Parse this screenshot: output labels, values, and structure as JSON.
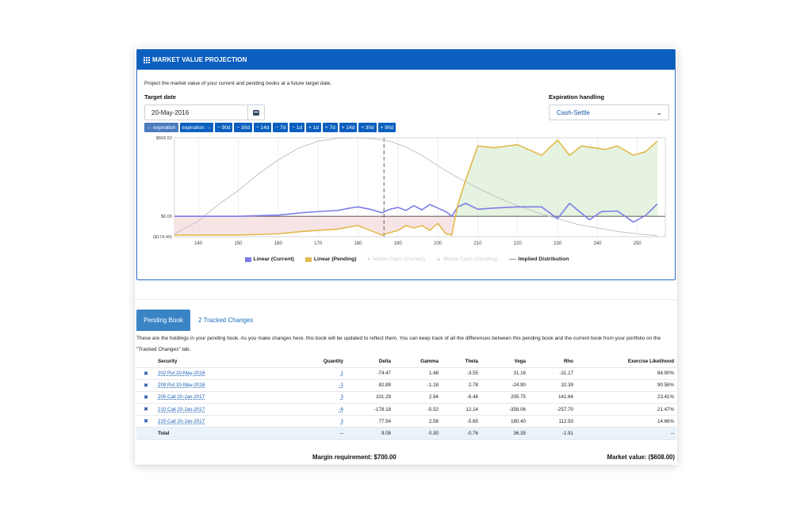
{
  "panel": {
    "title": "MARKET VALUE PROJECTION",
    "intro": "Project the market value of your current and pending books at a future target date.",
    "target_date_label": "Target date",
    "target_date_value": "20-May-2016",
    "expiration_label": "Expiration handling",
    "expiration_value": "Cash-Settle",
    "shift_buttons": [
      "← expiration",
      "expiration →",
      "− 90d",
      "− 30d",
      "− 14d",
      "− 7d",
      "− 1d",
      "+ 1d",
      "+ 7d",
      "+ 14d",
      "+ 30d",
      "+ 90d"
    ]
  },
  "chart_data": {
    "type": "line",
    "xlim": [
      134,
      257
    ],
    "ylim": [
      -174.4,
      669.52
    ],
    "y_tick_labels": [
      "$669.52",
      "$0.00",
      "($174.40)"
    ],
    "y_ticks": [
      669.52,
      0,
      -174.4
    ],
    "x_ticks": [
      140,
      150,
      160,
      170,
      180,
      190,
      200,
      210,
      220,
      230,
      240,
      250
    ],
    "marker_x": 186.5,
    "colors": {
      "current": "#7c7ce6",
      "pending": "#e3b94a",
      "implied": "#c4c4c8",
      "pos_fill": "#e5f3e0",
      "neg_fill": "#f7e4e4"
    },
    "series": [
      {
        "name": "Linear (Current)",
        "x": [
          134,
          150,
          160,
          166,
          170,
          175,
          178,
          180,
          183,
          186,
          188,
          190,
          192,
          194,
          196,
          198,
          200,
          202,
          203.5,
          205,
          207,
          210,
          214,
          220,
          226,
          230,
          233,
          238,
          241,
          245,
          249,
          252,
          255
        ],
        "values": [
          0,
          0,
          10,
          30,
          40,
          50,
          70,
          80,
          60,
          30,
          60,
          75,
          50,
          90,
          55,
          100,
          70,
          40,
          0,
          80,
          110,
          60,
          70,
          80,
          80,
          -20,
          110,
          -30,
          40,
          45,
          -50,
          5,
          105
        ]
      },
      {
        "name": "Linear (Pending)",
        "x": [
          134,
          150,
          160,
          166,
          170,
          175,
          178,
          180,
          183,
          186,
          188,
          190,
          192,
          194,
          196,
          198,
          200,
          202,
          203.5,
          205,
          207,
          210,
          214,
          220,
          226,
          230,
          233,
          236,
          242,
          245,
          249,
          252,
          255
        ],
        "values": [
          -160,
          -160,
          -150,
          -130,
          -120,
          -110,
          -90,
          -80,
          -120,
          -160,
          -140,
          -120,
          -80,
          -100,
          -80,
          -120,
          -60,
          -150,
          -160,
          100,
          310,
          600,
          585,
          610,
          520,
          650,
          520,
          600,
          570,
          600,
          520,
          550,
          640
        ]
      },
      {
        "name": "Implied Distribution",
        "x": [
          134,
          140,
          145,
          150,
          155,
          160,
          165,
          170,
          175,
          180,
          184,
          188,
          192,
          196,
          200,
          205,
          210,
          215,
          220,
          225,
          230,
          235,
          240,
          245,
          250,
          255
        ],
        "values": [
          -150,
          -40,
          100,
          220,
          360,
          480,
          580,
          640,
          665,
          669.52,
          660,
          640,
          590,
          520,
          430,
          330,
          240,
          160,
          90,
          30,
          -20,
          -70,
          -100,
          -130,
          -150,
          -165
        ]
      }
    ],
    "legend": [
      {
        "label": "Linear (Current)",
        "color": "#7c7ce6",
        "kind": "swatch"
      },
      {
        "label": "Linear (Pending)",
        "color": "#e3b94a",
        "kind": "swatch"
      },
      {
        "label": "Monte Carlo (Current)",
        "kind": "dot"
      },
      {
        "label": "Monte Carlo (Pending)",
        "kind": "triangle"
      },
      {
        "label": "Implied Distribution",
        "kind": "line"
      }
    ]
  },
  "tabs": {
    "active": "Pending Book",
    "other": "2 Tracked Changes"
  },
  "description": "These are the holdings in your pending book. As you make changes here, this book will be updated to reflect them. You can keep track of all the differences between this pending book and the current book from your portfolio on the \"Tracked Changes\" tab.",
  "table": {
    "columns": [
      "Security",
      "Quantity",
      "Delta",
      "Gamma",
      "Theta",
      "Vega",
      "Rho",
      "Exercise Likelihood"
    ],
    "rows": [
      {
        "security": "202 Put 20-May-2016",
        "quantity": "1",
        "delta": "-74.47",
        "gamma": "1.48",
        "theta": "-3.55",
        "vega": "31.16",
        "rho": "-31.17",
        "exercise": "84.90%"
      },
      {
        "security": "209 Put 20-May-2016",
        "quantity": "-1",
        "delta": "82.89",
        "gamma": "-1.18",
        "theta": "2.78",
        "vega": "-24.90",
        "rho": "32.39",
        "exercise": "90.58%"
      },
      {
        "security": "205 Call 20-Jan-2017",
        "quantity": "3",
        "delta": "101.29",
        "gamma": "2.94",
        "theta": "-6.48",
        "vega": "205.75",
        "rho": "141.64",
        "exercise": "23.41%"
      },
      {
        "security": "210 Call 20-Jan-2017",
        "quantity": "-6",
        "delta": "-178.18",
        "gamma": "-5.52",
        "theta": "12.14",
        "vega": "-356.06",
        "rho": "-257.70",
        "exercise": "21.47%"
      },
      {
        "security": "215 Call 20-Jan-2017",
        "quantity": "3",
        "delta": "77.54",
        "gamma": "2.58",
        "theta": "-5.65",
        "vega": "180.40",
        "rho": "112.93",
        "exercise": "14.66%"
      }
    ],
    "total": {
      "label": "Total",
      "quantity": "--",
      "delta": "9.08",
      "gamma": "0.30",
      "theta": "-0.76",
      "vega": "36.35",
      "rho": "-1.91",
      "exercise": "--"
    },
    "remove_icon": "close-icon"
  },
  "footer": {
    "margin": "Margin requirement: $700.00",
    "market_value": "Market value: ($608.00)"
  }
}
